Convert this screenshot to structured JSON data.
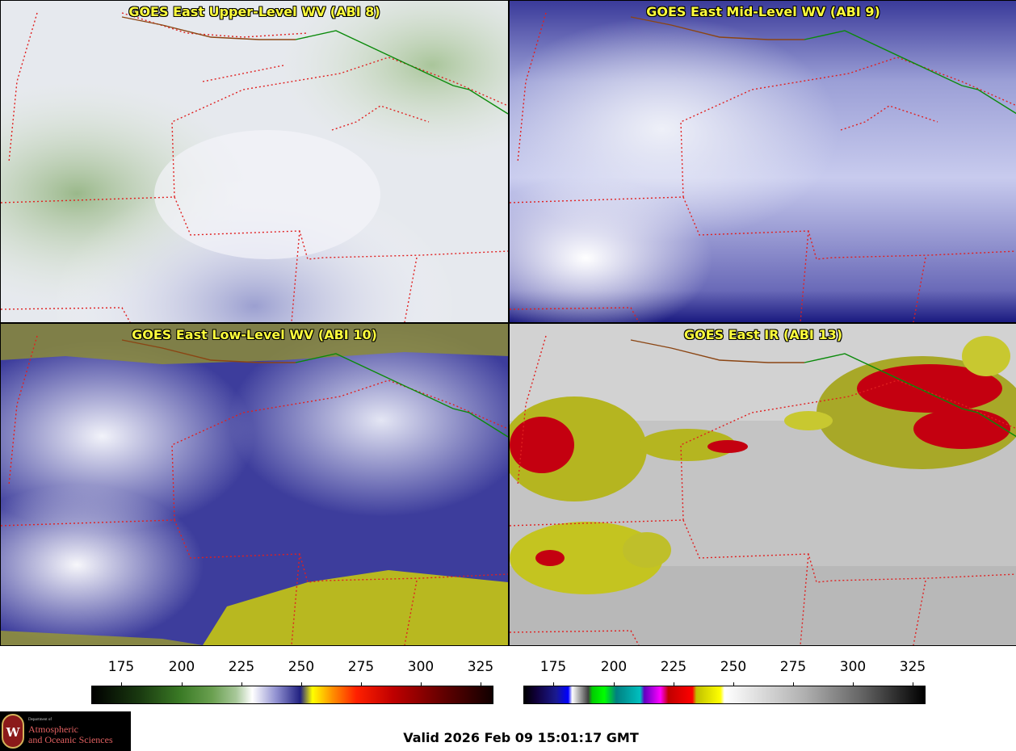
{
  "panels": [
    {
      "title": "GOES East Upper-Level WV (ABI 8)"
    },
    {
      "title": "GOES East Mid-Level WV (ABI 9)"
    },
    {
      "title": "GOES East Low-Level WV (ABI 10)"
    },
    {
      "title": "GOES East IR (ABI 13)"
    }
  ],
  "colorbars": {
    "wv": {
      "ticks": [
        "175",
        "200",
        "225",
        "250",
        "275",
        "300",
        "325"
      ]
    },
    "ir": {
      "ticks": [
        "175",
        "200",
        "225",
        "250",
        "275",
        "300",
        "325"
      ]
    }
  },
  "logo": {
    "seal_letter": "W",
    "dept": "Department of",
    "line1": "Atmospheric",
    "line2": "and Oceanic Sciences"
  },
  "valid_time": "Valid 2026 Feb 09 15:01:17 GMT",
  "colors": {
    "state_border": "#e02020",
    "country_border": "#0a8a0a",
    "title_text": "#ffff3c"
  }
}
